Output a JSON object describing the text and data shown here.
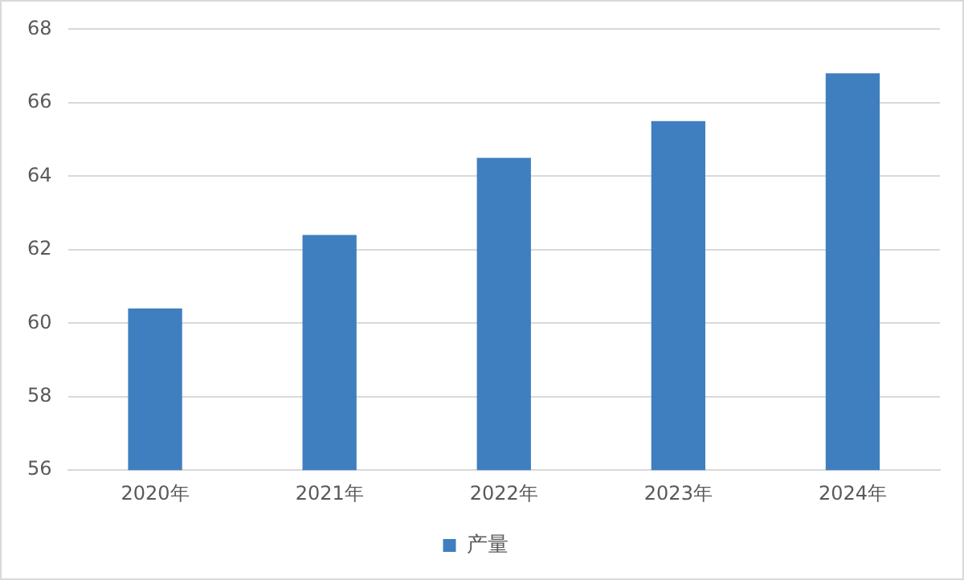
{
  "chart_data": {
    "type": "bar",
    "categories": [
      "2020年",
      "2021年",
      "2022年",
      "2023年",
      "2024年"
    ],
    "series": [
      {
        "name": "产量",
        "color": "#3f7fbf",
        "values": [
          60.4,
          62.4,
          64.5,
          65.5,
          66.8
        ]
      }
    ],
    "ylim": [
      56,
      68
    ],
    "yticks": [
      56,
      58,
      60,
      62,
      64,
      66,
      68
    ],
    "grid": "y",
    "legend": "bottom"
  }
}
